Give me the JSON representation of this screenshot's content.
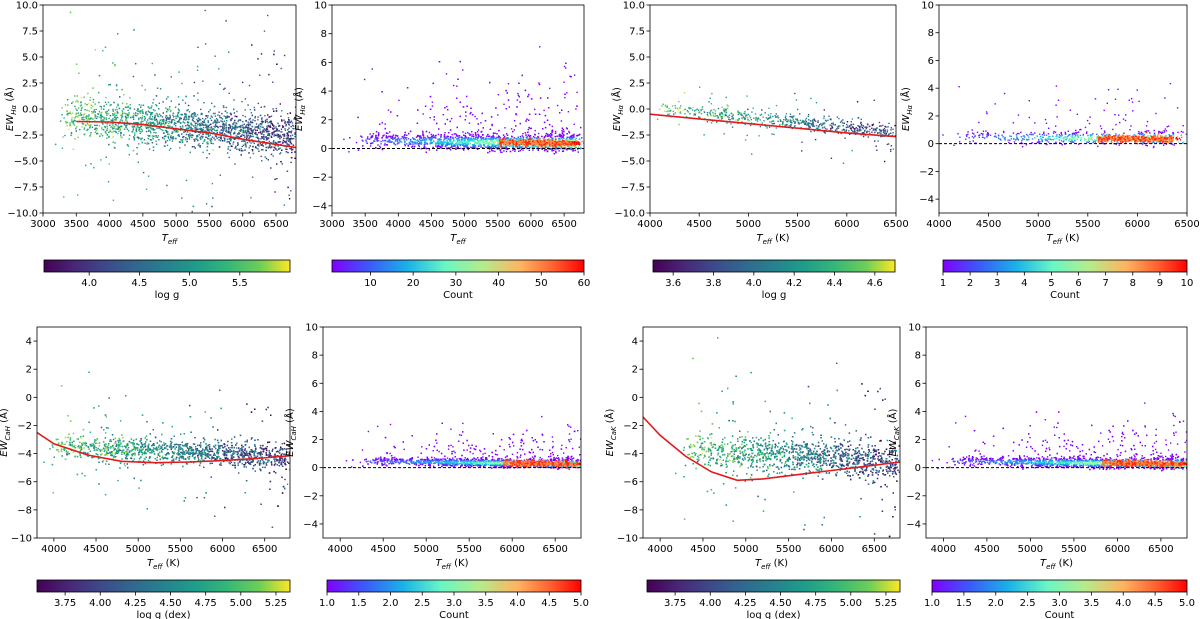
{
  "chart_data": [
    {
      "id": "p1",
      "type": "scatter",
      "ylabel_main": "EW",
      "ylabel_sub": "Hα",
      "ylabel_unit": " (Å)",
      "xlabel_main": "T",
      "xlabel_sub": "eff",
      "xlabel_unit": "",
      "xlim": [
        3000,
        6800
      ],
      "ylim": [
        -10,
        10
      ],
      "xticks": [
        3000,
        3500,
        4000,
        4500,
        5000,
        5500,
        6000,
        6500
      ],
      "yticks": [
        -10.0,
        -7.5,
        -5.0,
        -2.5,
        0.0,
        2.5,
        5.0,
        7.5,
        10.0
      ],
      "ytick_labels": [
        "−10.0",
        "−7.5",
        "−5.0",
        "−2.5",
        "0.0",
        "2.5",
        "5.0",
        "7.5",
        "10.0"
      ],
      "fit_curve": {
        "x": [
          3500,
          4000,
          4500,
          5000,
          5500,
          6000,
          6500,
          6800
        ],
        "y": [
          -1.2,
          -1.25,
          -1.5,
          -1.9,
          -2.3,
          -2.9,
          -3.4,
          -3.7
        ],
        "color": "#e31a1c"
      },
      "zero_line": false,
      "color_mode": "logg",
      "point_cloud": {
        "x_center": [
          3300,
          6800
        ],
        "y_trend": [
          -0.6,
          -2.6
        ],
        "spread": 1.4,
        "density": "high"
      },
      "colorbar": {
        "colormap": "viridis",
        "label": "log g",
        "range": [
          3.55,
          6.0
        ],
        "ticks": [
          4.0,
          4.5,
          5.0,
          5.5
        ],
        "tick_labels": [
          "4.0",
          "4.5",
          "5.0",
          "5.5"
        ]
      }
    },
    {
      "id": "p2",
      "type": "scatter",
      "ylabel_main": "EW",
      "ylabel_sub": "Hα",
      "ylabel_unit": " (Å)",
      "xlabel_main": "T",
      "xlabel_sub": "eff",
      "xlabel_unit": "",
      "xlim": [
        3000,
        6800
      ],
      "ylim": [
        -4.5,
        10
      ],
      "xticks": [
        3000,
        3500,
        4000,
        4500,
        5000,
        5500,
        6000,
        6500
      ],
      "yticks": [
        -4,
        -2,
        0,
        2,
        4,
        6,
        8,
        10
      ],
      "ytick_labels": [
        "−4",
        "−2",
        "0",
        "2",
        "4",
        "6",
        "8",
        "10"
      ],
      "fit_curve": null,
      "zero_line": true,
      "color_mode": "count",
      "point_cloud": {
        "x_center": [
          3300,
          6700
        ],
        "y_trend": [
          0.6,
          0.4
        ],
        "spread": 0.7,
        "density": "high"
      },
      "colorbar": {
        "colormap": "rainbow",
        "label": "Count",
        "range": [
          1,
          60
        ],
        "ticks": [
          10,
          20,
          30,
          40,
          50,
          60
        ],
        "tick_labels": [
          "10",
          "20",
          "30",
          "40",
          "50",
          "60"
        ]
      }
    },
    {
      "id": "p3",
      "type": "scatter",
      "ylabel_main": "EW",
      "ylabel_sub": "Hα",
      "ylabel_unit": " (Å)",
      "xlabel_main": "T",
      "xlabel_sub": "eff",
      "xlabel_unit": " (K)",
      "xlim": [
        4000,
        6500
      ],
      "ylim": [
        -10,
        10
      ],
      "xticks": [
        4000,
        4500,
        5000,
        5500,
        6000,
        6500
      ],
      "yticks": [
        -10.0,
        -7.5,
        -5.0,
        -2.5,
        0.0,
        2.5,
        5.0,
        7.5,
        10.0
      ],
      "ytick_labels": [
        "−10.0",
        "−7.5",
        "−5.0",
        "−2.5",
        "0.0",
        "2.5",
        "5.0",
        "7.5",
        "10.0"
      ],
      "fit_curve": {
        "x": [
          4000,
          4500,
          5000,
          5500,
          6000,
          6500
        ],
        "y": [
          -0.5,
          -0.95,
          -1.4,
          -1.85,
          -2.3,
          -2.65
        ],
        "color": "#e31a1c"
      },
      "zero_line": false,
      "color_mode": "logg",
      "point_cloud": {
        "x_center": [
          4100,
          6500
        ],
        "y_trend": [
          0.2,
          -2.2
        ],
        "spread": 0.5,
        "density": "low"
      },
      "colorbar": {
        "colormap": "viridis",
        "label": "log g",
        "range": [
          3.5,
          4.7
        ],
        "ticks": [
          3.6,
          3.8,
          4.0,
          4.2,
          4.4,
          4.6
        ],
        "tick_labels": [
          "3.6",
          "3.8",
          "4.0",
          "4.2",
          "4.4",
          "4.6"
        ]
      }
    },
    {
      "id": "p4",
      "type": "scatter",
      "ylabel_main": "EW",
      "ylabel_sub": "Hα",
      "ylabel_unit": " (Å)",
      "xlabel_main": "T",
      "xlabel_sub": "eff",
      "xlabel_unit": " (K)",
      "xlim": [
        4000,
        6500
      ],
      "ylim": [
        -5,
        10
      ],
      "xticks": [
        4000,
        4500,
        5000,
        5500,
        6000,
        6500
      ],
      "yticks": [
        -4,
        -2,
        0,
        2,
        4,
        6,
        8,
        10
      ],
      "ytick_labels": [
        "−4",
        "−2",
        "0",
        "2",
        "4",
        "6",
        "8",
        "10"
      ],
      "fit_curve": null,
      "zero_line": true,
      "color_mode": "count",
      "point_cloud": {
        "x_center": [
          4100,
          6400
        ],
        "y_trend": [
          0.5,
          0.4
        ],
        "spread": 0.6,
        "density": "low"
      },
      "colorbar": {
        "colormap": "rainbow",
        "label": "Count",
        "range": [
          1,
          10
        ],
        "ticks": [
          1,
          2,
          3,
          4,
          5,
          6,
          7,
          8,
          9,
          10
        ],
        "tick_labels": [
          "1",
          "2",
          "3",
          "4",
          "5",
          "6",
          "7",
          "8",
          "9",
          "10"
        ]
      }
    },
    {
      "id": "p5",
      "type": "scatter",
      "ylabel_main": "EW",
      "ylabel_sub": "CaH",
      "ylabel_unit": " (Å)",
      "xlabel_main": "T",
      "xlabel_sub": "eff",
      "xlabel_unit": " (K)",
      "xlim": [
        3800,
        6800
      ],
      "ylim": [
        -10,
        5
      ],
      "xticks": [
        4000,
        4500,
        5000,
        5500,
        6000,
        6500
      ],
      "yticks": [
        -10,
        -8,
        -6,
        -4,
        -2,
        0,
        2,
        4
      ],
      "ytick_labels": [
        "−10",
        "−8",
        "−6",
        "−4",
        "−2",
        "0",
        "2",
        "4"
      ],
      "fit_curve": {
        "x": [
          3800,
          4000,
          4400,
          4800,
          5200,
          5600,
          6000,
          6400,
          6800
        ],
        "y": [
          -2.5,
          -3.3,
          -4.1,
          -4.55,
          -4.65,
          -4.6,
          -4.5,
          -4.35,
          -4.15
        ],
        "color": "#e31a1c"
      },
      "zero_line": false,
      "color_mode": "logg",
      "point_cloud": {
        "x_center": [
          4000,
          6800
        ],
        "y_trend": [
          -3.4,
          -4.2
        ],
        "spread": 0.6,
        "density": "high"
      },
      "colorbar": {
        "colormap": "viridis",
        "label": "log g (dex)",
        "range": [
          3.55,
          5.35
        ],
        "ticks": [
          3.75,
          4.0,
          4.25,
          4.5,
          4.75,
          5.0,
          5.25
        ],
        "tick_labels": [
          "3.75",
          "4.00",
          "4.25",
          "4.50",
          "4.75",
          "5.00",
          "5.25"
        ]
      }
    },
    {
      "id": "p6",
      "type": "scatter",
      "ylabel_main": "EW",
      "ylabel_sub": "CaH",
      "ylabel_unit": " (Å)",
      "xlabel_main": "T",
      "xlabel_sub": "eff",
      "xlabel_unit": " (K)",
      "xlim": [
        3800,
        6800
      ],
      "ylim": [
        -5,
        10
      ],
      "xticks": [
        4000,
        4500,
        5000,
        5500,
        6000,
        6500
      ],
      "yticks": [
        -4,
        -2,
        0,
        2,
        4,
        6,
        8,
        10
      ],
      "ytick_labels": [
        "−4",
        "−2",
        "0",
        "2",
        "4",
        "6",
        "8",
        "10"
      ],
      "fit_curve": null,
      "zero_line": true,
      "color_mode": "count",
      "point_cloud": {
        "x_center": [
          4200,
          6800
        ],
        "y_trend": [
          0.5,
          0.3
        ],
        "spread": 0.35,
        "density": "high"
      },
      "colorbar": {
        "colormap": "rainbow",
        "label": "Count",
        "range": [
          1.0,
          5.0
        ],
        "ticks": [
          1.0,
          1.5,
          2.0,
          2.5,
          3.0,
          3.5,
          4.0,
          4.5,
          5.0
        ],
        "tick_labels": [
          "1.0",
          "1.5",
          "2.0",
          "2.5",
          "3.0",
          "3.5",
          "4.0",
          "4.5",
          "5.0"
        ]
      }
    },
    {
      "id": "p7",
      "type": "scatter",
      "ylabel_main": "EW",
      "ylabel_sub": "CaK",
      "ylabel_unit": " (Å)",
      "xlabel_main": "T",
      "xlabel_sub": "eff",
      "xlabel_unit": " (K)",
      "xlim": [
        3800,
        6800
      ],
      "ylim": [
        -10,
        5
      ],
      "xticks": [
        4000,
        4500,
        5000,
        5500,
        6000,
        6500
      ],
      "yticks": [
        -10,
        -8,
        -6,
        -4,
        -2,
        0,
        2,
        4
      ],
      "ytick_labels": [
        "−10",
        "−8",
        "−6",
        "−4",
        "−2",
        "0",
        "2",
        "4"
      ],
      "fit_curve": {
        "x": [
          3800,
          4000,
          4300,
          4600,
          4900,
          5200,
          5600,
          6000,
          6400,
          6800
        ],
        "y": [
          -1.4,
          -2.7,
          -4.2,
          -5.3,
          -5.9,
          -5.8,
          -5.5,
          -5.2,
          -4.9,
          -4.6
        ],
        "color": "#e31a1c"
      },
      "zero_line": false,
      "color_mode": "logg",
      "point_cloud": {
        "x_center": [
          4300,
          6800
        ],
        "y_trend": [
          -3.6,
          -4.6
        ],
        "spread": 0.9,
        "density": "high"
      },
      "colorbar": {
        "colormap": "viridis",
        "label": "log g (dex)",
        "range": [
          3.55,
          5.35
        ],
        "ticks": [
          3.75,
          4.0,
          4.25,
          4.5,
          4.75,
          5.0,
          5.25
        ],
        "tick_labels": [
          "3.75",
          "4.00",
          "4.25",
          "4.50",
          "4.75",
          "5.00",
          "5.25"
        ]
      }
    },
    {
      "id": "p8",
      "type": "scatter",
      "ylabel_main": "EW",
      "ylabel_sub": "CaK",
      "ylabel_unit": " (Å)",
      "xlabel_main": "T",
      "xlabel_sub": "eff",
      "xlabel_unit": " (K)",
      "xlim": [
        3800,
        6800
      ],
      "ylim": [
        -5,
        10
      ],
      "xticks": [
        4000,
        4500,
        5000,
        5500,
        6000,
        6500
      ],
      "yticks": [
        -4,
        -2,
        0,
        2,
        4,
        6,
        8,
        10
      ],
      "ytick_labels": [
        "−4",
        "−2",
        "0",
        "2",
        "4",
        "6",
        "8",
        "10"
      ],
      "fit_curve": null,
      "zero_line": true,
      "color_mode": "count",
      "point_cloud": {
        "x_center": [
          4000,
          6800
        ],
        "y_trend": [
          0.5,
          0.3
        ],
        "spread": 0.45,
        "density": "high"
      },
      "colorbar": {
        "colormap": "rainbow",
        "label": "Count",
        "range": [
          1.0,
          5.0
        ],
        "ticks": [
          1.0,
          1.5,
          2.0,
          2.5,
          3.0,
          3.5,
          4.0,
          4.5,
          5.0
        ],
        "tick_labels": [
          "1.0",
          "1.5",
          "2.0",
          "2.5",
          "3.0",
          "3.5",
          "4.0",
          "4.5",
          "5.0"
        ]
      }
    }
  ]
}
